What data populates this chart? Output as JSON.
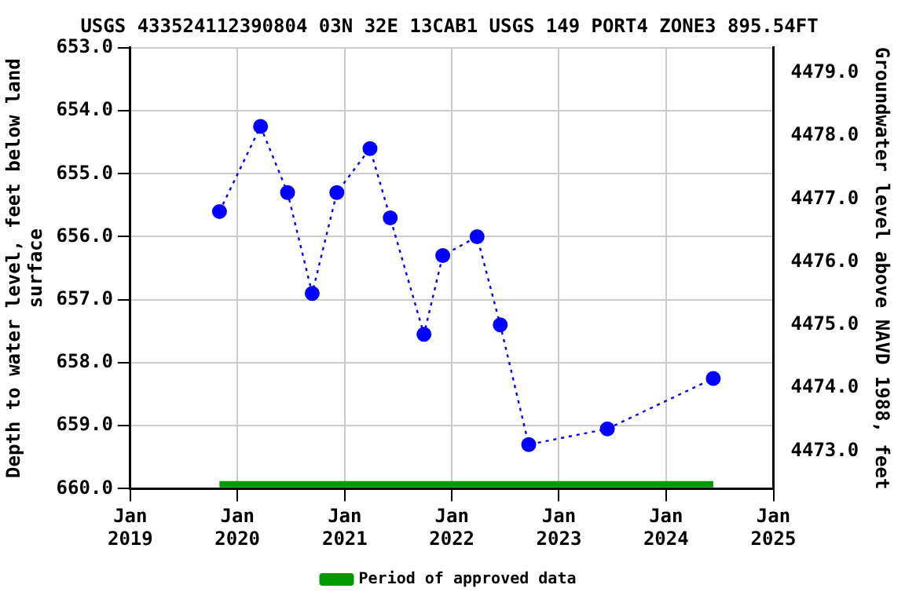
{
  "chart_data": {
    "type": "line",
    "title": "USGS 433524112390804 03N 32E 13CAB1 USGS 149 PORT4 ZONE3 895.54FT",
    "ylabel": "Depth to water level, feet below land surface",
    "y2label": "Groundwater level above NAVD 1988, feet",
    "x": [
      "2019-11-01",
      "2020-03-20",
      "2020-06-20",
      "2020-09-12",
      "2020-12-05",
      "2021-03-28",
      "2021-06-05",
      "2021-09-28",
      "2021-12-01",
      "2022-03-28",
      "2022-06-15",
      "2022-09-20",
      "2023-06-15",
      "2024-06-10"
    ],
    "series": [
      {
        "color": "#0000ff",
        "values": [
          655.6,
          654.25,
          655.3,
          656.9,
          655.3,
          654.6,
          655.7,
          657.55,
          656.3,
          656.0,
          657.4,
          659.3,
          659.05,
          658.25
        ]
      },
      {
        "name": "Period of approved data",
        "color": "#009900",
        "x": [
          "2019-11-01",
          "2024-06-10"
        ],
        "values": [
          659.93,
          659.93
        ],
        "marker": "none",
        "line_style": "solid"
      }
    ],
    "xlim": [
      "2019-01-01",
      "2025-01-01"
    ],
    "xticks": [
      {
        "value": "2019-01-01",
        "label": "Jan\n2019"
      },
      {
        "value": "2020-01-01",
        "label": "Jan\n2020"
      },
      {
        "value": "2021-01-01",
        "label": "Jan\n2021"
      },
      {
        "value": "2022-01-01",
        "label": "Jan\n2022"
      },
      {
        "value": "2023-01-01",
        "label": "Jan\n2023"
      },
      {
        "value": "2024-01-01",
        "label": "Jan\n2024"
      },
      {
        "value": "2025-01-01",
        "label": "Jan\n2025"
      }
    ],
    "ylim": [
      660,
      653
    ],
    "yticks": [
      {
        "value": 653,
        "label": "653.0"
      },
      {
        "value": 654,
        "label": "654.0"
      },
      {
        "value": 655,
        "label": "655.0"
      },
      {
        "value": 656,
        "label": "656.0"
      },
      {
        "value": 657,
        "label": "657.0"
      },
      {
        "value": 658,
        "label": "658.0"
      },
      {
        "value": 659,
        "label": "659.0"
      },
      {
        "value": 660,
        "label": "660.0"
      }
    ],
    "y2lim": [
      4472.4,
      4479.4
    ],
    "y2ticks": [
      {
        "value": 4473,
        "label": "4473.0"
      },
      {
        "value": 4474,
        "label": "4474.0"
      },
      {
        "value": 4475,
        "label": "4475.0"
      },
      {
        "value": 4476,
        "label": "4476.0"
      },
      {
        "value": 4477,
        "label": "4477.0"
      },
      {
        "value": 4478,
        "label": "4478.0"
      },
      {
        "value": 4479,
        "label": "4479.0"
      }
    ],
    "grid": true,
    "marker": "circle",
    "line_style": "dotted",
    "legend": "bottom"
  }
}
